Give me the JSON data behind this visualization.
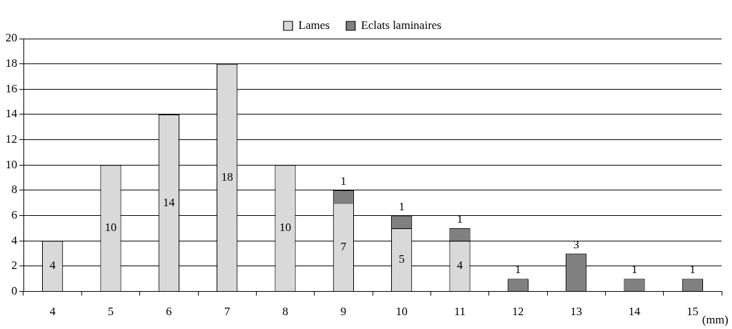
{
  "chart_data": {
    "type": "bar",
    "stacked": true,
    "xlabel": "(mm)",
    "categories": [
      "4",
      "5",
      "6",
      "7",
      "8",
      "9",
      "10",
      "11",
      "12",
      "13",
      "14",
      "15"
    ],
    "series": [
      {
        "name": "Lames",
        "color": "#d9d9d9",
        "values": [
          4,
          10,
          14,
          18,
          10,
          7,
          5,
          4,
          null,
          null,
          null,
          null
        ]
      },
      {
        "name": "Eclats laminaires",
        "color": "#808080",
        "values": [
          null,
          null,
          null,
          null,
          null,
          1,
          1,
          1,
          1,
          3,
          1,
          1
        ]
      }
    ],
    "ylim": [
      0,
      20
    ],
    "yticks": [
      0,
      2,
      4,
      6,
      8,
      10,
      12,
      14,
      16,
      18,
      20
    ],
    "grid": "y",
    "legend": "top",
    "data_labels": true
  }
}
